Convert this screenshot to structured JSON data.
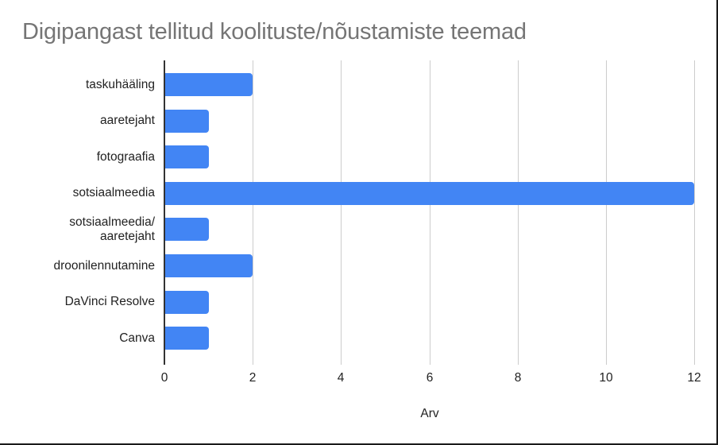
{
  "chart_data": {
    "type": "bar",
    "orientation": "horizontal",
    "title": "Digipangast tellitud koolituste/nõustamiste teemad",
    "xlabel": "Arv",
    "ylabel": "",
    "categories": [
      "taskuhääling",
      "aaretejaht",
      "fotograafia",
      "sotsiaalmeedia",
      "sotsiaalmeedia/ aaretejaht",
      "droonilennutamine",
      "DaVinci Resolve",
      "Canva"
    ],
    "category_lines": [
      [
        "taskuhääling"
      ],
      [
        "aaretejaht"
      ],
      [
        "fotograafia"
      ],
      [
        "sotsiaalmeedia"
      ],
      [
        "sotsiaalmeedia/",
        "aaretejaht"
      ],
      [
        "droonilennutamine"
      ],
      [
        "DaVinci Resolve"
      ],
      [
        "Canva"
      ]
    ],
    "values": [
      2,
      1,
      1,
      12,
      1,
      2,
      1,
      1
    ],
    "xlim": [
      0,
      12
    ],
    "xticks": [
      "0",
      "2",
      "4",
      "6",
      "8",
      "10",
      "12"
    ],
    "grid": true,
    "legend": "none",
    "bar_color": "#4285f4"
  }
}
